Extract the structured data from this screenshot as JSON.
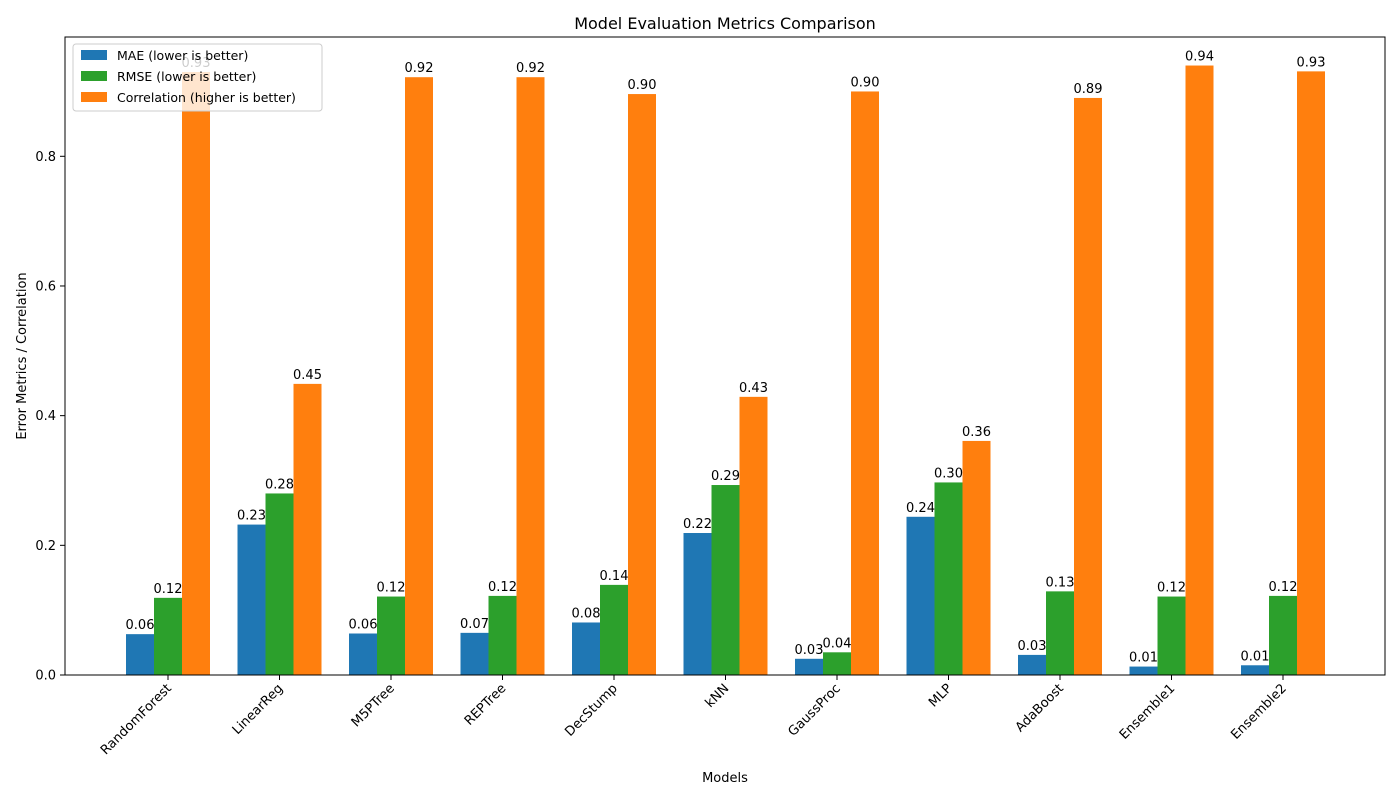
{
  "chart_data": {
    "type": "bar",
    "title": "Model Evaluation Metrics Comparison",
    "xlabel": "Models",
    "ylabel": "Error Metrics / Correlation",
    "categories": [
      "RandomForest",
      "LinearReg",
      "M5PTree",
      "REPTree",
      "DecStump",
      "kNN",
      "GaussProc",
      "MLP",
      "AdaBoost",
      "Ensemble1",
      "Ensemble2"
    ],
    "series": [
      {
        "name": "MAE (lower is better)",
        "color": "#1f77b4",
        "values": [
          0.063,
          0.232,
          0.064,
          0.065,
          0.081,
          0.219,
          0.025,
          0.244,
          0.031,
          0.013,
          0.015
        ],
        "labels": [
          "0.06",
          "0.23",
          "0.06",
          "0.07",
          "0.08",
          "0.22",
          "0.03",
          "0.24",
          "0.03",
          "0.01",
          "0.01"
        ]
      },
      {
        "name": "RMSE (lower is better)",
        "color": "#2ca02c",
        "values": [
          0.119,
          0.28,
          0.121,
          0.122,
          0.139,
          0.293,
          0.035,
          0.297,
          0.129,
          0.121,
          0.122
        ],
        "labels": [
          "0.12",
          "0.28",
          "0.12",
          "0.12",
          "0.14",
          "0.29",
          "0.04",
          "0.30",
          "0.13",
          "0.12",
          "0.12"
        ]
      },
      {
        "name": "Correlation (higher is better)",
        "color": "#ff7f0e",
        "values": [
          0.93,
          0.449,
          0.922,
          0.922,
          0.896,
          0.429,
          0.9,
          0.361,
          0.89,
          0.94,
          0.931
        ],
        "labels": [
          "0.93",
          "0.45",
          "0.92",
          "0.92",
          "0.90",
          "0.43",
          "0.90",
          "0.36",
          "0.89",
          "0.94",
          "0.93"
        ]
      }
    ],
    "ylim": [
      0,
      0.984
    ],
    "yticks": [
      0.0,
      0.2,
      0.4,
      0.6,
      0.8
    ],
    "ytick_labels": [
      "0.0",
      "0.2",
      "0.4",
      "0.6",
      "0.8"
    ],
    "grid": false,
    "legend_position": "top-left"
  }
}
